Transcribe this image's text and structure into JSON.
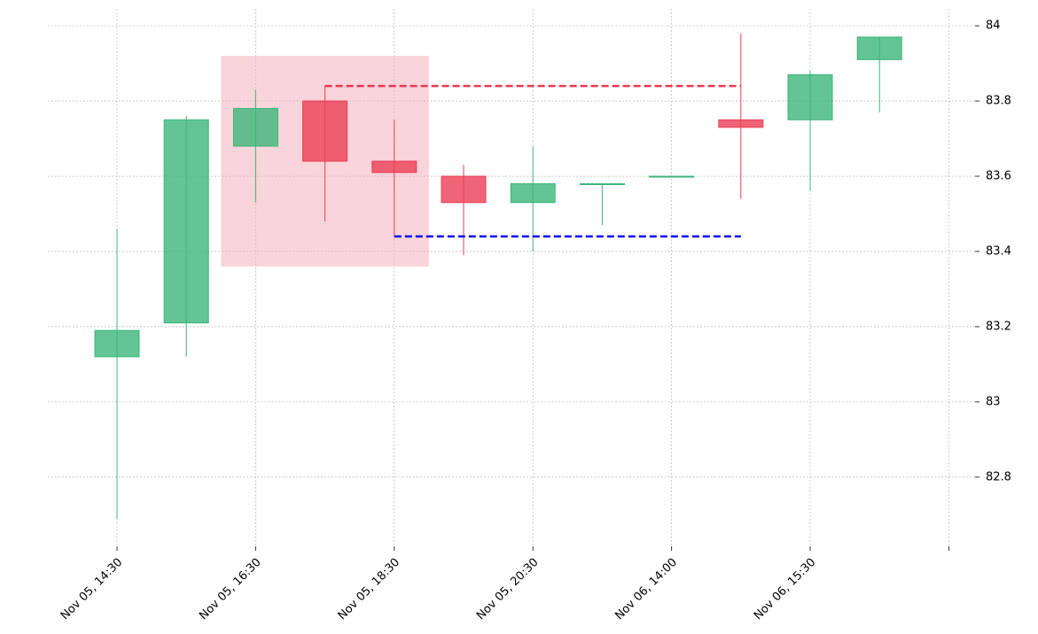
{
  "chart_data": {
    "type": "candlestick",
    "categories": [
      "Nov 05, 14:30",
      null,
      "Nov 05, 16:30",
      null,
      "Nov 05, 18:30",
      null,
      "Nov 05, 20:30",
      null,
      "Nov 06, 14:00",
      null,
      "Nov 06, 15:30",
      null
    ],
    "open": [
      83.12,
      83.21,
      83.68,
      83.8,
      83.64,
      83.6,
      83.53,
      83.58,
      83.6,
      83.75,
      83.75,
      83.91
    ],
    "high": [
      83.46,
      83.76,
      83.83,
      83.84,
      83.75,
      83.63,
      83.68,
      83.58,
      83.6,
      83.98,
      83.88,
      83.97
    ],
    "low": [
      82.69,
      83.12,
      83.53,
      83.48,
      83.44,
      83.39,
      83.4,
      83.47,
      83.6,
      83.54,
      83.56,
      83.77
    ],
    "close": [
      83.19,
      83.75,
      83.78,
      83.64,
      83.61,
      83.53,
      83.58,
      83.58,
      83.6,
      83.73,
      83.87,
      83.97
    ],
    "up_color": "#3cb57a",
    "down_color": "#eb3f55",
    "ylim": [
      82.616,
      84.045
    ],
    "yticks": [
      82.8,
      83.0,
      83.2,
      83.4,
      83.6,
      83.8,
      84.0
    ],
    "grid": true,
    "zone": {
      "from": 1.5,
      "to": 4.5,
      "low": 83.36,
      "high": 83.92,
      "color": "#f4aab5"
    },
    "levels": [
      {
        "value": 83.84,
        "from": 3,
        "to": 9,
        "color": "#e8384f"
      },
      {
        "value": 83.44,
        "from": 4,
        "to": 9,
        "color": "#0000ee"
      }
    ]
  }
}
